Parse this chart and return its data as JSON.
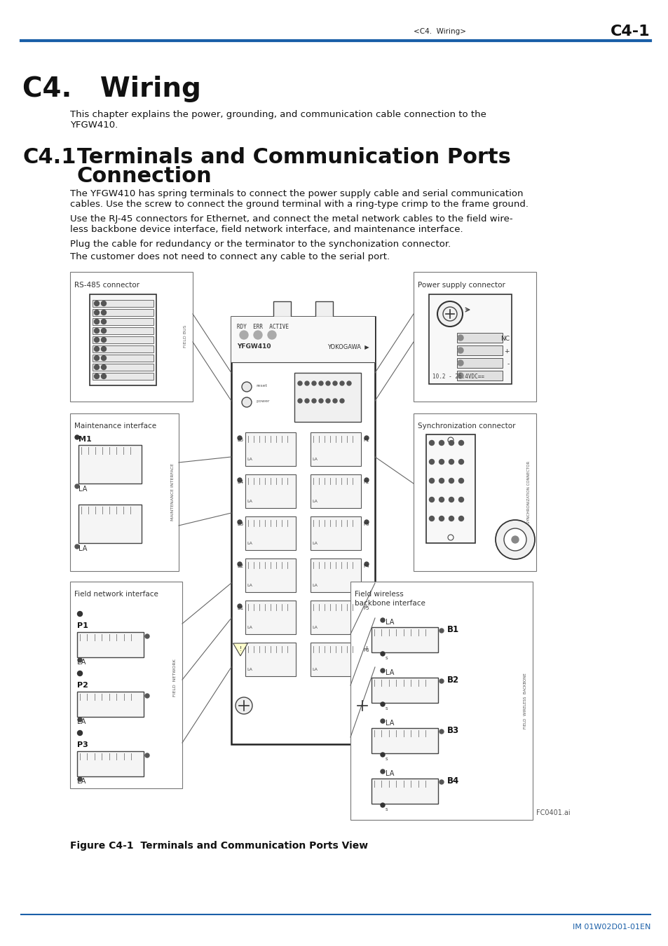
{
  "page_bg": "#ffffff",
  "header_text_left": "<C4.  Wiring>",
  "header_text_right": "C4-1",
  "header_line_color": "#1a5fa8",
  "chapter_title": "C4.   Wiring",
  "section_number": "C4.1",
  "section_title": "Terminals and Communication Ports\n        Connection",
  "body_para1_line1": "This chapter explains the power, grounding, and communication cable connection to the",
  "body_para1_line2": "YFGW410.",
  "body_para2_line1": "The YFGW410 has spring terminals to connect the power supply cable and serial communication",
  "body_para2_line2": "cables. Use the screw to connect the ground terminal with a ring-type crimp to the frame ground.",
  "body_para3_line1": "Use the RJ-45 connectors for Ethernet, and connect the metal network cables to the field wire-",
  "body_para3_line2": "less backbone device interface, field network interface, and maintenance interface.",
  "body_para4": "Plug the cable for redundancy or the terminator to the synchonization connector.",
  "body_para5": "The customer does not need to connect any cable to the serial port.",
  "figure_caption": "Figure C4-1  Terminals and Communication Ports View",
  "footer_text": "IM 01W02D01-01EN",
  "footer_line_color": "#1a5fa8",
  "label_rs485": "RS-485 connector",
  "label_power": "Power supply connector",
  "label_maintenance": "Maintenance interface",
  "label_sync": "Synchronization connector",
  "label_field_net": "Field network interface",
  "label_field_wireless": "Field wireless\nbackbone interface",
  "fc_label": "FC0401.ai"
}
